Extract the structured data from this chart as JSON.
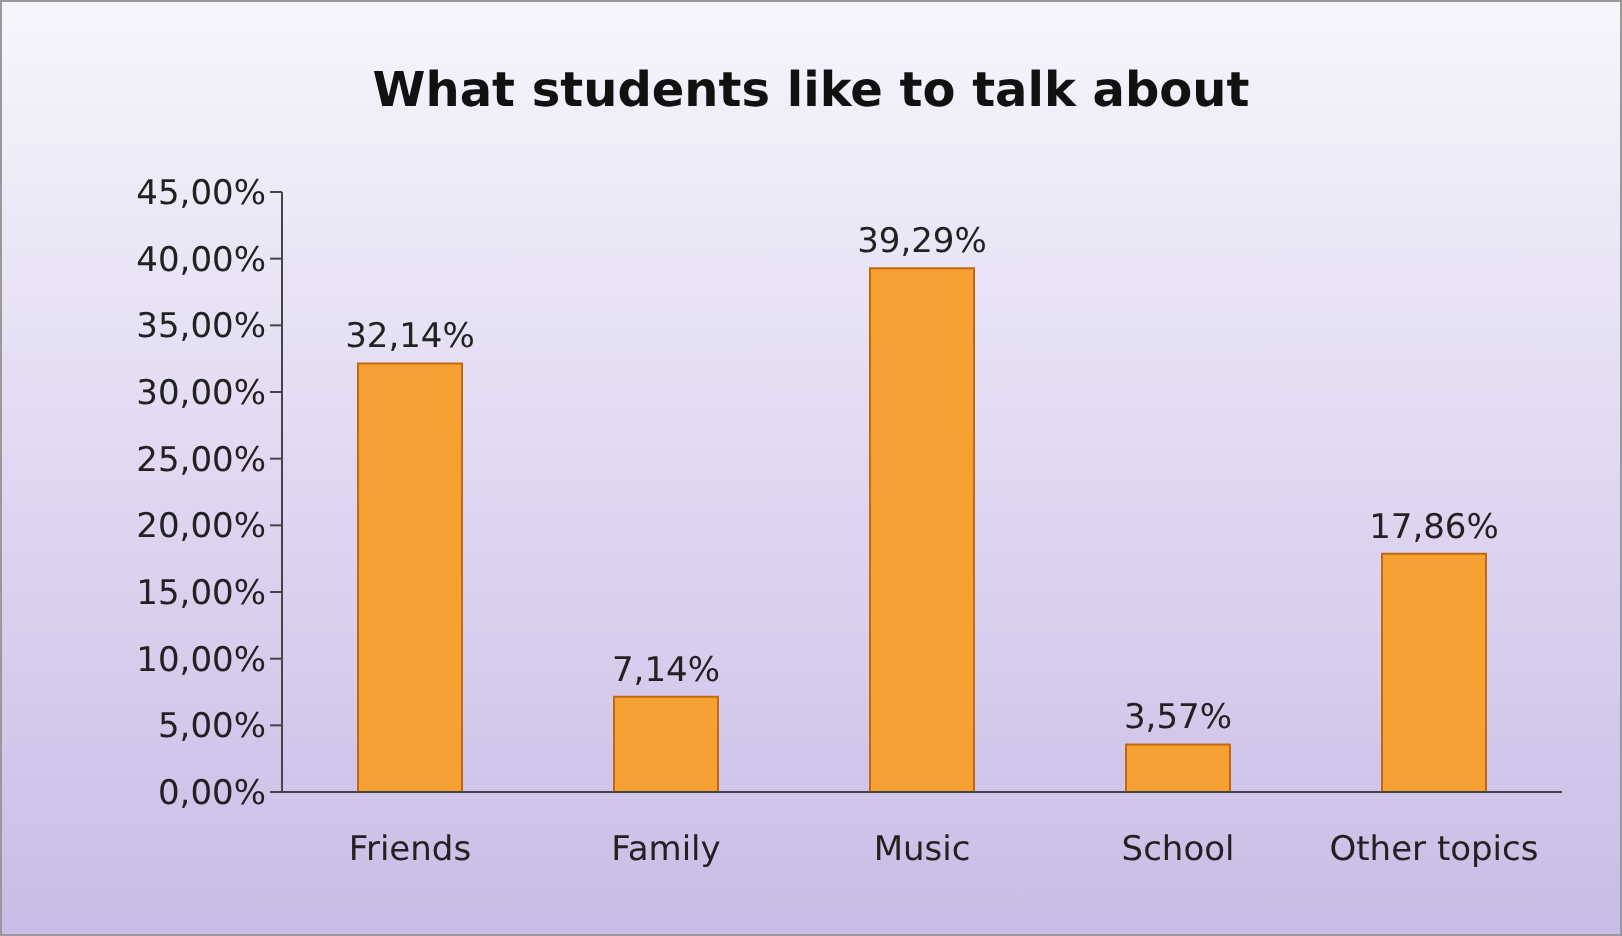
{
  "chart_data": {
    "type": "bar",
    "title": "What students like to talk about",
    "categories": [
      "Friends",
      "Family",
      "Music",
      "School",
      "Other topics"
    ],
    "values": [
      32.14,
      7.14,
      39.29,
      3.57,
      17.86
    ],
    "value_labels": [
      "32,14%",
      "7,14%",
      "39,29%",
      "3,57%",
      "17,86%"
    ],
    "color": "#f7a033",
    "ylim": [
      0,
      45
    ],
    "yticks": [
      {
        "value": 0,
        "label": "0,00%"
      },
      {
        "value": 5,
        "label": "5,00%"
      },
      {
        "value": 10,
        "label": "10,00%"
      },
      {
        "value": 15,
        "label": "15,00%"
      },
      {
        "value": 20,
        "label": "20,00%"
      },
      {
        "value": 25,
        "label": "25,00%"
      },
      {
        "value": 30,
        "label": "30,00%"
      },
      {
        "value": 35,
        "label": "35,00%"
      },
      {
        "value": 40,
        "label": "40,00%"
      },
      {
        "value": 45,
        "label": "45,00%"
      }
    ],
    "grid": false,
    "legend": false
  }
}
